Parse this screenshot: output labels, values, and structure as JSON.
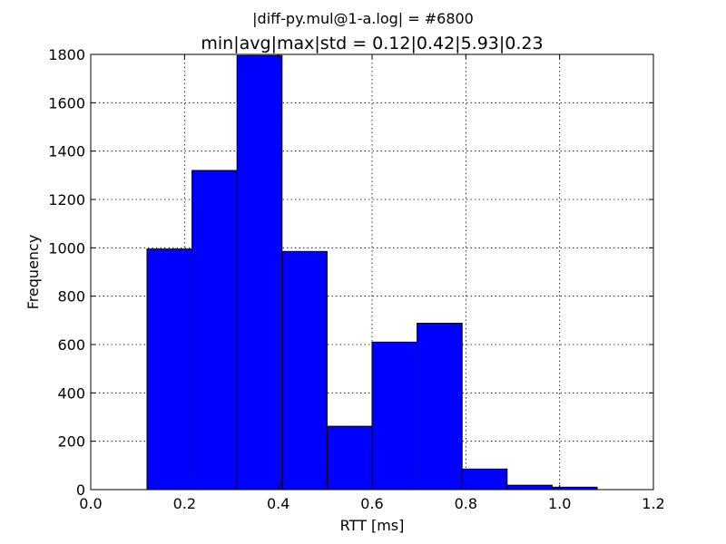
{
  "chart_data": {
    "type": "bar",
    "suptitle": "|diff-py.mul@1-a.log| = #6800",
    "title": "min|avg|max|std = 0.12|0.42|5.93|0.23",
    "xlabel": "RTT [ms]",
    "ylabel": "Frequency",
    "xlim": [
      0.0,
      1.2
    ],
    "ylim": [
      0,
      1800
    ],
    "xticks": [
      0.0,
      0.2,
      0.4,
      0.6,
      0.8,
      1.0,
      1.2
    ],
    "xtick_labels": [
      "0.0",
      "0.2",
      "0.4",
      "0.6",
      "0.8",
      "1.0",
      "1.2"
    ],
    "yticks": [
      0,
      200,
      400,
      600,
      800,
      1000,
      1200,
      1400,
      1600,
      1800
    ],
    "ytick_labels": [
      "0",
      "200",
      "400",
      "600",
      "800",
      "1000",
      "1200",
      "1400",
      "1600",
      "1800"
    ],
    "grid": true,
    "bar_color": "#0000ff",
    "bins": [
      {
        "x0": 0.12,
        "x1": 0.216,
        "value": 995
      },
      {
        "x0": 0.216,
        "x1": 0.312,
        "value": 1320
      },
      {
        "x0": 0.312,
        "x1": 0.408,
        "value": 1795
      },
      {
        "x0": 0.408,
        "x1": 0.504,
        "value": 985
      },
      {
        "x0": 0.504,
        "x1": 0.6,
        "value": 262
      },
      {
        "x0": 0.6,
        "x1": 0.696,
        "value": 610
      },
      {
        "x0": 0.696,
        "x1": 0.792,
        "value": 688
      },
      {
        "x0": 0.792,
        "x1": 0.888,
        "value": 85
      },
      {
        "x0": 0.888,
        "x1": 0.984,
        "value": 18
      },
      {
        "x0": 0.984,
        "x1": 1.08,
        "value": 10
      }
    ]
  }
}
